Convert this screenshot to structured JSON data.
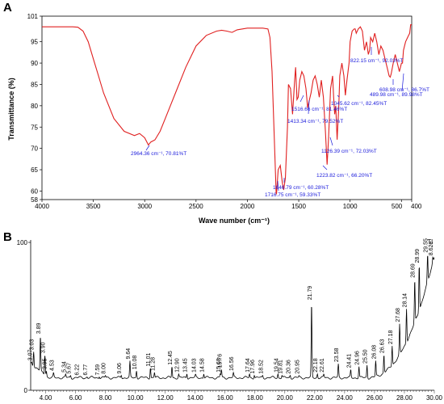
{
  "chart_data": [
    {
      "type": "line",
      "panel_label": "A",
      "xlabel": "Wave number (cm⁻¹)",
      "ylabel": "Transmittance (%)",
      "xlim": [
        4000,
        400
      ],
      "ylim": [
        58,
        101
      ],
      "x_ticks": [
        4000,
        3500,
        3000,
        2500,
        2000,
        1500,
        1000,
        500,
        400
      ],
      "x_tick_labels": [
        "4000",
        "3500",
        "3000",
        "2500",
        "2000",
        "1500",
        "1000",
        "500",
        "400"
      ],
      "y_ticks": [
        58,
        60,
        65,
        70,
        75,
        80,
        85,
        90,
        95,
        101
      ],
      "line_color": "#e02020",
      "series": [
        {
          "x": [
            4000,
            3700,
            3650,
            3600,
            3550,
            3500,
            3450,
            3400,
            3300,
            3200,
            3100,
            3050,
            3000,
            2964,
            2940,
            2900,
            2850,
            2800,
            2700,
            2600,
            2500,
            2400,
            2300,
            2250,
            2200,
            2150,
            2100,
            2000,
            1900,
            1850,
            1800,
            1780,
            1760,
            1740,
            1720,
            1716,
            1700,
            1680,
            1660,
            1647,
            1630,
            1610,
            1600,
            1580,
            1560,
            1540,
            1530,
            1517,
            1505,
            1490,
            1470,
            1450,
            1430,
            1413,
            1400,
            1380,
            1360,
            1340,
            1320,
            1300,
            1280,
            1260,
            1240,
            1224,
            1210,
            1190,
            1170,
            1160,
            1150,
            1140,
            1126,
            1110,
            1100,
            1080,
            1060,
            1046,
            1030,
            1010,
            1000,
            980,
            960,
            950,
            940,
            920,
            900,
            880,
            860,
            840,
            822,
            810,
            800,
            780,
            760,
            740,
            720,
            700,
            680,
            660,
            640,
            620,
            609,
            600,
            580,
            560,
            540,
            520,
            500,
            490,
            480,
            460,
            440,
            420,
            410,
            400
          ],
          "y": [
            98.5,
            98.5,
            98.4,
            97.5,
            95,
            91,
            87,
            83,
            77,
            74,
            73,
            73.5,
            72.5,
            70.81,
            71.5,
            72,
            74,
            77,
            83,
            89,
            94,
            96.5,
            97.5,
            97.7,
            97.5,
            97.2,
            97.8,
            98.2,
            98.2,
            98.2,
            98,
            96,
            88,
            74,
            59.33,
            59.5,
            65,
            66,
            62,
            60.28,
            63,
            75,
            85,
            84,
            78,
            86,
            89,
            81.46,
            82,
            86,
            88,
            87,
            84,
            79.52,
            81,
            83,
            86,
            87,
            85,
            82,
            86,
            82,
            74,
            66.2,
            72,
            84,
            87,
            82,
            78,
            80,
            72.03,
            80,
            87,
            90,
            87,
            82.45,
            86,
            90,
            95,
            97.5,
            98,
            98,
            97,
            98,
            98.5,
            97.5,
            93,
            95,
            92.03,
            93,
            96,
            95,
            97,
            95,
            92,
            94,
            93,
            91,
            89,
            87,
            86.7,
            87.5,
            90,
            92,
            90,
            88,
            89.98,
            90,
            93,
            95,
            96,
            97,
            99,
            99
          ]
        }
      ],
      "annotations": [
        {
          "label": "2964.36  cm⁻¹,  70.81%T"
        },
        {
          "label": "1716.75  cm⁻¹,  59.33%T"
        },
        {
          "label": "1646.79  cm⁻¹,  60.28%T"
        },
        {
          "label": "1516.66  cm⁻¹,  81.46%T"
        },
        {
          "label": "1413.34  cm⁻¹,  79.52%T"
        },
        {
          "label": "1223.82  cm⁻¹,  66.20%T"
        },
        {
          "label": "1126.39  cm⁻¹,  72.03%T"
        },
        {
          "label": "1045.62  cm⁻¹,  82.45%T"
        },
        {
          "label": "822.15  cm⁻¹,  92.03%T"
        },
        {
          "label": "608.98  cm⁻¹,  86.7%T"
        },
        {
          "label": "489.98  cm⁻¹,  89.98%T"
        }
      ]
    },
    {
      "type": "line",
      "panel_label": "B",
      "xlim": [
        3.0,
        30.0
      ],
      "ylim": [
        0,
        100
      ],
      "x_ticks": [
        4,
        6,
        8,
        10,
        12,
        14,
        16,
        18,
        20,
        22,
        24,
        26,
        28,
        30
      ],
      "x_tick_labels": [
        "4.00",
        "6.00",
        "8.00",
        "10.00",
        "12.00",
        "14.00",
        "16.00",
        "18.00",
        "20.00",
        "22.00",
        "24.00",
        "26.00",
        "28.00",
        "30.00"
      ],
      "y_ticks": [
        0,
        100
      ],
      "y_tick_labels": [
        "0",
        "100"
      ],
      "corner_label": "Tl",
      "line_color": "#000000",
      "peaks": [
        {
          "label": "3.07",
          "x": 3.07,
          "y": 19
        },
        {
          "label": "3.03",
          "x": 3.2,
          "y": 26
        },
        {
          "label": "3.89",
          "x": 3.65,
          "y": 37
        },
        {
          "label": "3.90",
          "x": 3.95,
          "y": 24
        },
        {
          "label": "3.95",
          "x": 4.05,
          "y": 13
        },
        {
          "label": "4.53",
          "x": 4.53,
          "y": 12
        },
        {
          "label": "5.34",
          "x": 5.34,
          "y": 11
        },
        {
          "label": "5.67",
          "x": 5.67,
          "y": 10
        },
        {
          "label": "6.22",
          "x": 6.22,
          "y": 9
        },
        {
          "label": "6.77",
          "x": 6.77,
          "y": 9
        },
        {
          "label": "7.59",
          "x": 7.59,
          "y": 9
        },
        {
          "label": "8.00",
          "x": 8.0,
          "y": 10
        },
        {
          "label": "9.06",
          "x": 9.06,
          "y": 10
        },
        {
          "label": "9.64",
          "x": 9.64,
          "y": 20
        },
        {
          "label": "10.08",
          "x": 10.08,
          "y": 13
        },
        {
          "label": "11.01",
          "x": 11.01,
          "y": 15
        },
        {
          "label": "11.28",
          "x": 11.28,
          "y": 12
        },
        {
          "label": "12.45",
          "x": 12.45,
          "y": 16
        },
        {
          "label": "12.90",
          "x": 12.9,
          "y": 11
        },
        {
          "label": "13.45",
          "x": 13.45,
          "y": 11
        },
        {
          "label": "14.03",
          "x": 14.03,
          "y": 11
        },
        {
          "label": "14.58",
          "x": 14.58,
          "y": 11
        },
        {
          "label": "15.68",
          "x": 15.68,
          "y": 11
        },
        {
          "label": "15.76",
          "x": 15.76,
          "y": 14
        },
        {
          "label": "16.56",
          "x": 16.56,
          "y": 12
        },
        {
          "label": "17.64",
          "x": 17.64,
          "y": 11
        },
        {
          "label": "17.96",
          "x": 17.96,
          "y": 10
        },
        {
          "label": "18.52",
          "x": 18.52,
          "y": 10
        },
        {
          "label": "19.54",
          "x": 19.54,
          "y": 11
        },
        {
          "label": "19.81",
          "x": 19.81,
          "y": 10
        },
        {
          "label": "20.36",
          "x": 20.36,
          "y": 10
        },
        {
          "label": "20.95",
          "x": 20.95,
          "y": 10
        },
        {
          "label": "21.79",
          "x": 21.79,
          "y": 60
        },
        {
          "label": "22.18",
          "x": 22.18,
          "y": 11
        },
        {
          "label": "22.61",
          "x": 22.61,
          "y": 11
        },
        {
          "label": "23.58",
          "x": 23.58,
          "y": 18
        },
        {
          "label": "24.41",
          "x": 24.41,
          "y": 14
        },
        {
          "label": "24.96",
          "x": 24.96,
          "y": 16
        },
        {
          "label": "25.50",
          "x": 25.5,
          "y": 17
        },
        {
          "label": "26.08",
          "x": 26.08,
          "y": 20
        },
        {
          "label": "26.63",
          "x": 26.63,
          "y": 24
        },
        {
          "label": "27.18",
          "x": 27.18,
          "y": 30
        },
        {
          "label": "27.68",
          "x": 27.68,
          "y": 45
        },
        {
          "label": "28.14",
          "x": 28.14,
          "y": 55
        },
        {
          "label": "28.69",
          "x": 28.69,
          "y": 75
        },
        {
          "label": "28.99",
          "x": 28.99,
          "y": 85
        },
        {
          "label": "29.55",
          "x": 29.55,
          "y": 92
        },
        {
          "label": "8.62e",
          "x": 29.9,
          "y": 90
        }
      ]
    }
  ]
}
